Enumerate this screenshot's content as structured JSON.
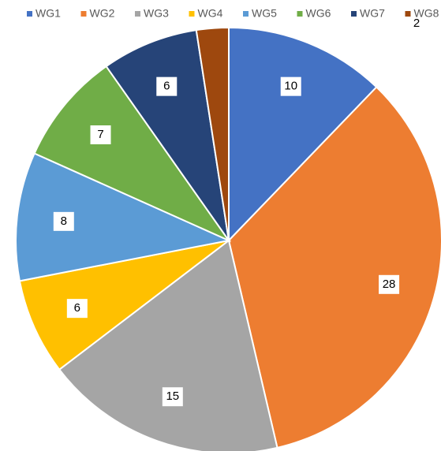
{
  "chart_data": {
    "type": "pie",
    "categories": [
      "WG1",
      "WG2",
      "WG3",
      "WG4",
      "WG5",
      "WG6",
      "WG7",
      "WG8"
    ],
    "values": [
      10,
      28,
      15,
      6,
      8,
      7,
      6,
      2
    ],
    "colors": [
      "#4472c4",
      "#ed7d31",
      "#a5a5a5",
      "#ffc000",
      "#5b9bd5",
      "#70ad47",
      "#264478",
      "#9e480e"
    ],
    "legend": "top"
  }
}
